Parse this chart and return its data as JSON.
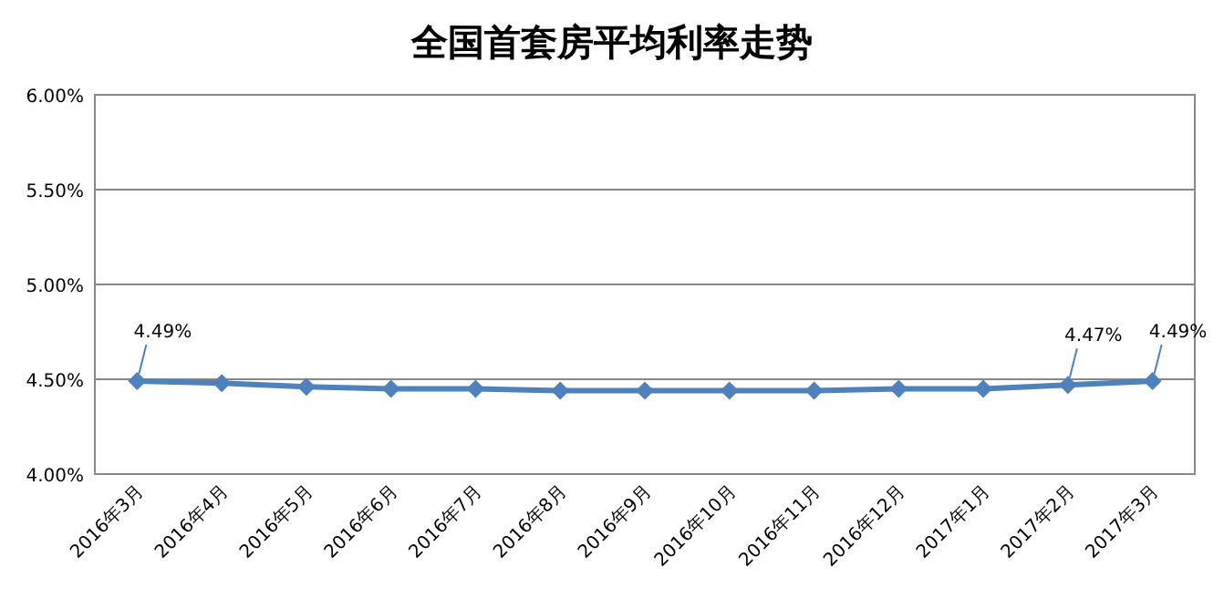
{
  "chart_data": {
    "type": "line",
    "title": "全国首套房平均利率走势",
    "categories": [
      "2016年3月",
      "2016年4月",
      "2016年5月",
      "2016年6月",
      "2016年7月",
      "2016年8月",
      "2016年9月",
      "2016年10月",
      "2016年11月",
      "2016年12月",
      "2017年1月",
      "2017年2月",
      "2017年3月"
    ],
    "series": [
      {
        "color": "#4f81bd",
        "values": [
          4.49,
          4.48,
          4.46,
          4.45,
          4.45,
          4.44,
          4.44,
          4.44,
          4.44,
          4.45,
          4.45,
          4.47,
          4.49
        ],
        "value_labels": [
          "4.49%",
          null,
          null,
          null,
          null,
          null,
          null,
          null,
          null,
          null,
          null,
          "4.47%",
          "4.49%"
        ]
      }
    ],
    "ylim": [
      4.0,
      6.0
    ],
    "yticks": [
      {
        "value": 4.0,
        "label": "4.00%"
      },
      {
        "value": 4.5,
        "label": "4.50%"
      },
      {
        "value": 5.0,
        "label": "5.00%"
      },
      {
        "value": 5.5,
        "label": "5.50%"
      },
      {
        "value": 6.0,
        "label": "6.00%"
      }
    ],
    "grid": "y",
    "marker": "diamond",
    "line_style": "solid"
  }
}
